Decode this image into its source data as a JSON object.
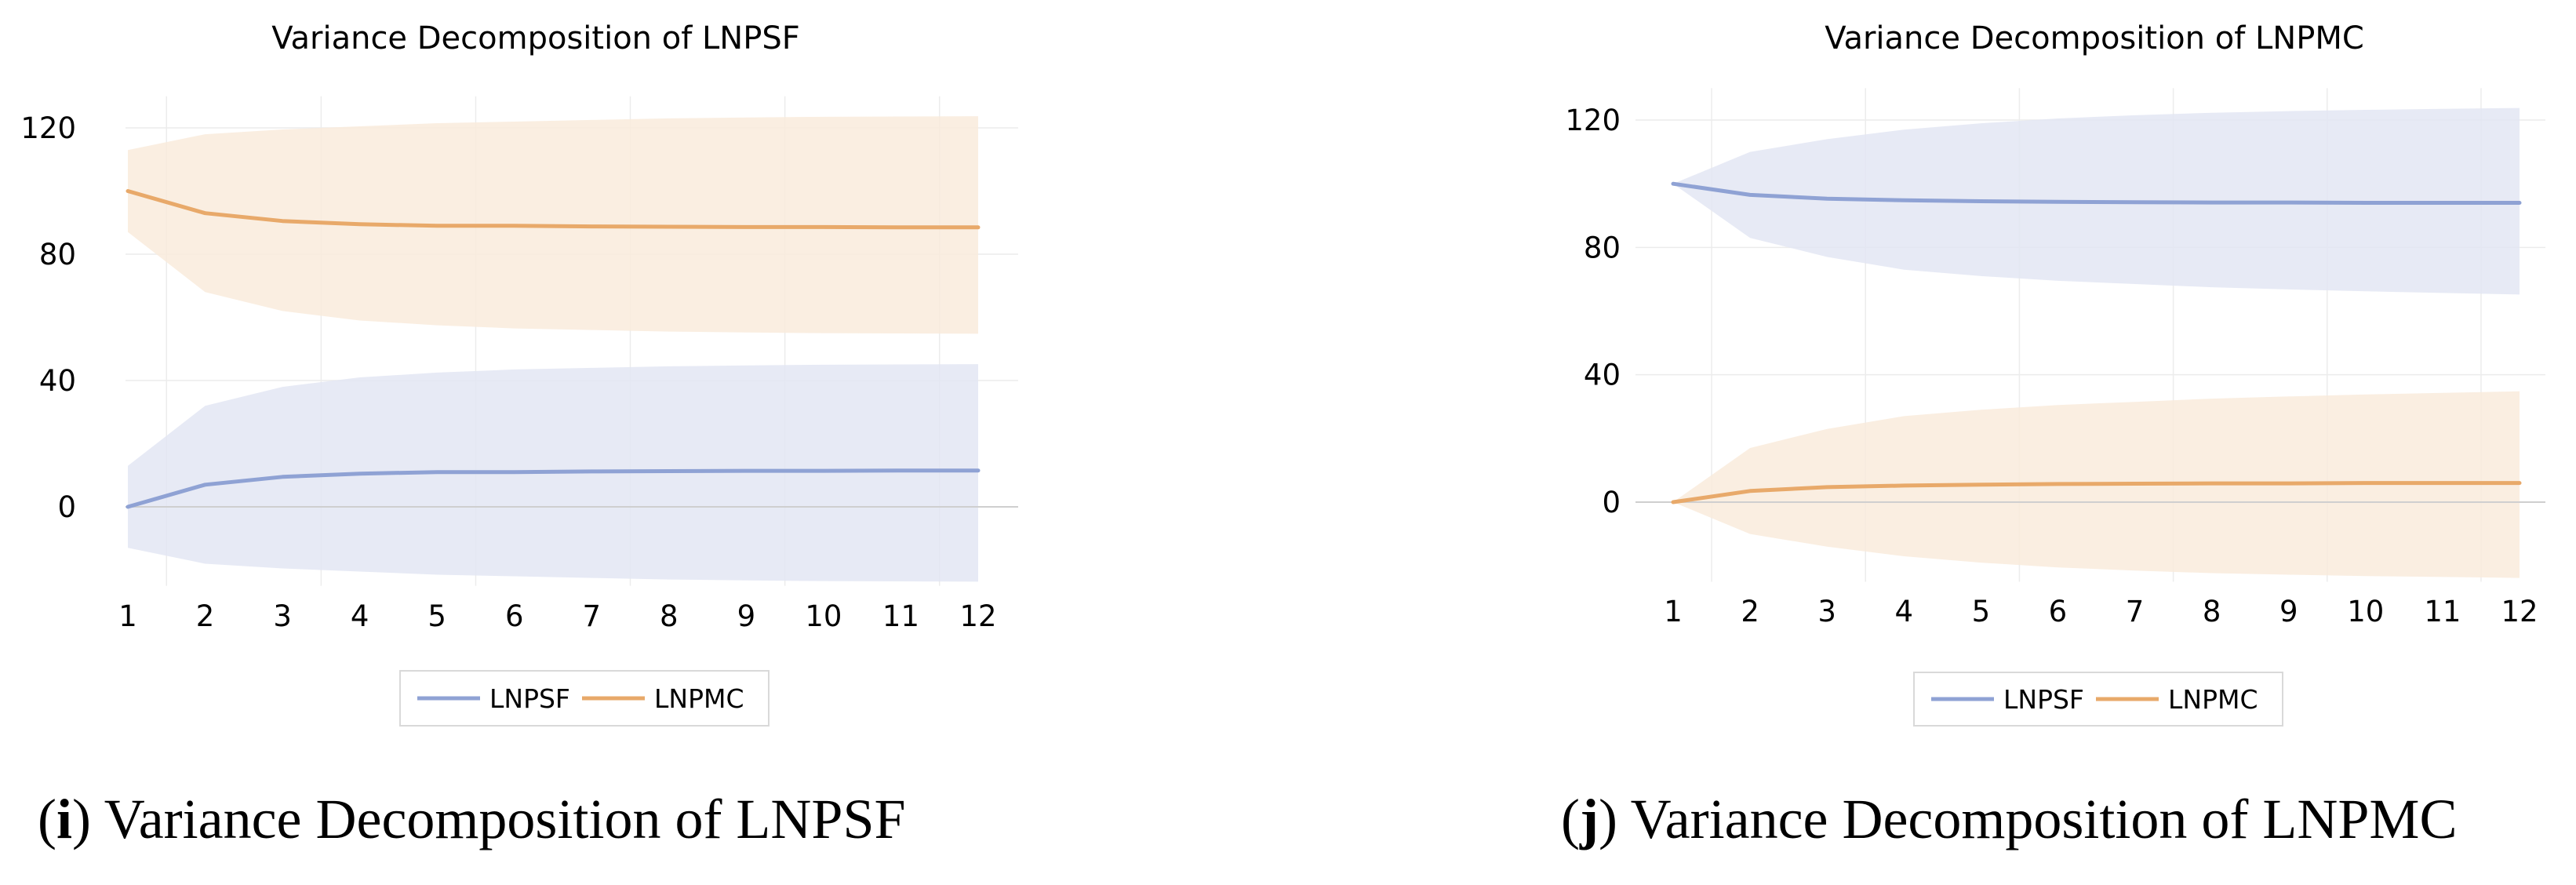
{
  "chart_data": [
    {
      "type": "line",
      "title": "Variance Decomposition of LNPSF",
      "x": [
        1,
        2,
        3,
        4,
        5,
        6,
        7,
        8,
        9,
        10,
        11,
        12
      ],
      "ylim": [
        -25,
        130
      ],
      "yticks": [
        0,
        40,
        80,
        120
      ],
      "ytick_labels": [
        "0",
        "40",
        "80",
        "120"
      ],
      "xtick_labels": [
        "1",
        "2",
        "3",
        "4",
        "5",
        "6",
        "7",
        "8",
        "9",
        "10",
        "11",
        "12"
      ],
      "grid": true,
      "legend_position": "bottom",
      "series": [
        {
          "name": "LNPSF",
          "color": "#8fa2d4",
          "band_color": "#e3e6f3",
          "values": [
            0,
            7,
            9.5,
            10.5,
            11,
            11,
            11.2,
            11.3,
            11.4,
            11.4,
            11.5,
            11.5
          ],
          "lower": [
            -13,
            -18,
            -19.5,
            -20.5,
            -21.5,
            -22,
            -22.5,
            -23,
            -23.3,
            -23.5,
            -23.6,
            -23.7
          ],
          "upper": [
            13,
            32,
            38,
            41,
            42.5,
            43.5,
            44,
            44.5,
            44.8,
            45,
            45.1,
            45.2
          ]
        },
        {
          "name": "LNPMC",
          "color": "#e8a96a",
          "band_color": "#f9ebdc",
          "values": [
            100,
            93,
            90.5,
            89.5,
            89,
            89,
            88.8,
            88.7,
            88.6,
            88.6,
            88.5,
            88.5
          ],
          "lower": [
            87,
            68,
            62,
            59,
            57.5,
            56.5,
            56,
            55.5,
            55.2,
            55,
            54.9,
            54.8
          ],
          "upper": [
            113,
            118,
            119.5,
            120.5,
            121.5,
            122,
            122.5,
            123,
            123.3,
            123.5,
            123.6,
            123.7
          ]
        }
      ]
    },
    {
      "type": "line",
      "title": "Variance Decomposition of LNPMC",
      "x": [
        1,
        2,
        3,
        4,
        5,
        6,
        7,
        8,
        9,
        10,
        11,
        12
      ],
      "ylim": [
        -25,
        130
      ],
      "yticks": [
        0,
        40,
        80,
        120
      ],
      "ytick_labels": [
        "0",
        "40",
        "80",
        "120"
      ],
      "xtick_labels": [
        "1",
        "2",
        "3",
        "4",
        "5",
        "6",
        "7",
        "8",
        "9",
        "10",
        "11",
        "12"
      ],
      "grid": true,
      "legend_position": "bottom",
      "series": [
        {
          "name": "LNPSF",
          "color": "#8fa2d4",
          "band_color": "#e3e6f3",
          "values": [
            100,
            96.5,
            95.3,
            94.8,
            94.5,
            94.3,
            94.2,
            94.1,
            94.1,
            94.0,
            94.0,
            94.0
          ],
          "lower": [
            100,
            83,
            77,
            73,
            71,
            69.5,
            68.5,
            67.5,
            66.8,
            66.2,
            65.7,
            65.2
          ],
          "upper": [
            100,
            110,
            114,
            117,
            119,
            120.5,
            121.5,
            122.3,
            122.8,
            123.2,
            123.5,
            123.8
          ]
        },
        {
          "name": "LNPMC",
          "color": "#e8a96a",
          "band_color": "#f9ebdc",
          "values": [
            0,
            3.5,
            4.7,
            5.2,
            5.5,
            5.7,
            5.8,
            5.9,
            5.9,
            6.0,
            6.0,
            6.0
          ],
          "lower": [
            0,
            -10,
            -14,
            -17,
            -19,
            -20.5,
            -21.5,
            -22.3,
            -22.8,
            -23.2,
            -23.5,
            -23.8
          ],
          "upper": [
            0,
            17,
            23,
            27,
            29,
            30.5,
            31.5,
            32.5,
            33.2,
            33.8,
            34.3,
            34.8
          ]
        }
      ]
    }
  ],
  "captions": [
    {
      "letter": "(i)",
      "text": "Variance Decomposition of LNPSF"
    },
    {
      "letter": "(j)",
      "text": "Variance Decomposition of LNPMC"
    }
  ]
}
